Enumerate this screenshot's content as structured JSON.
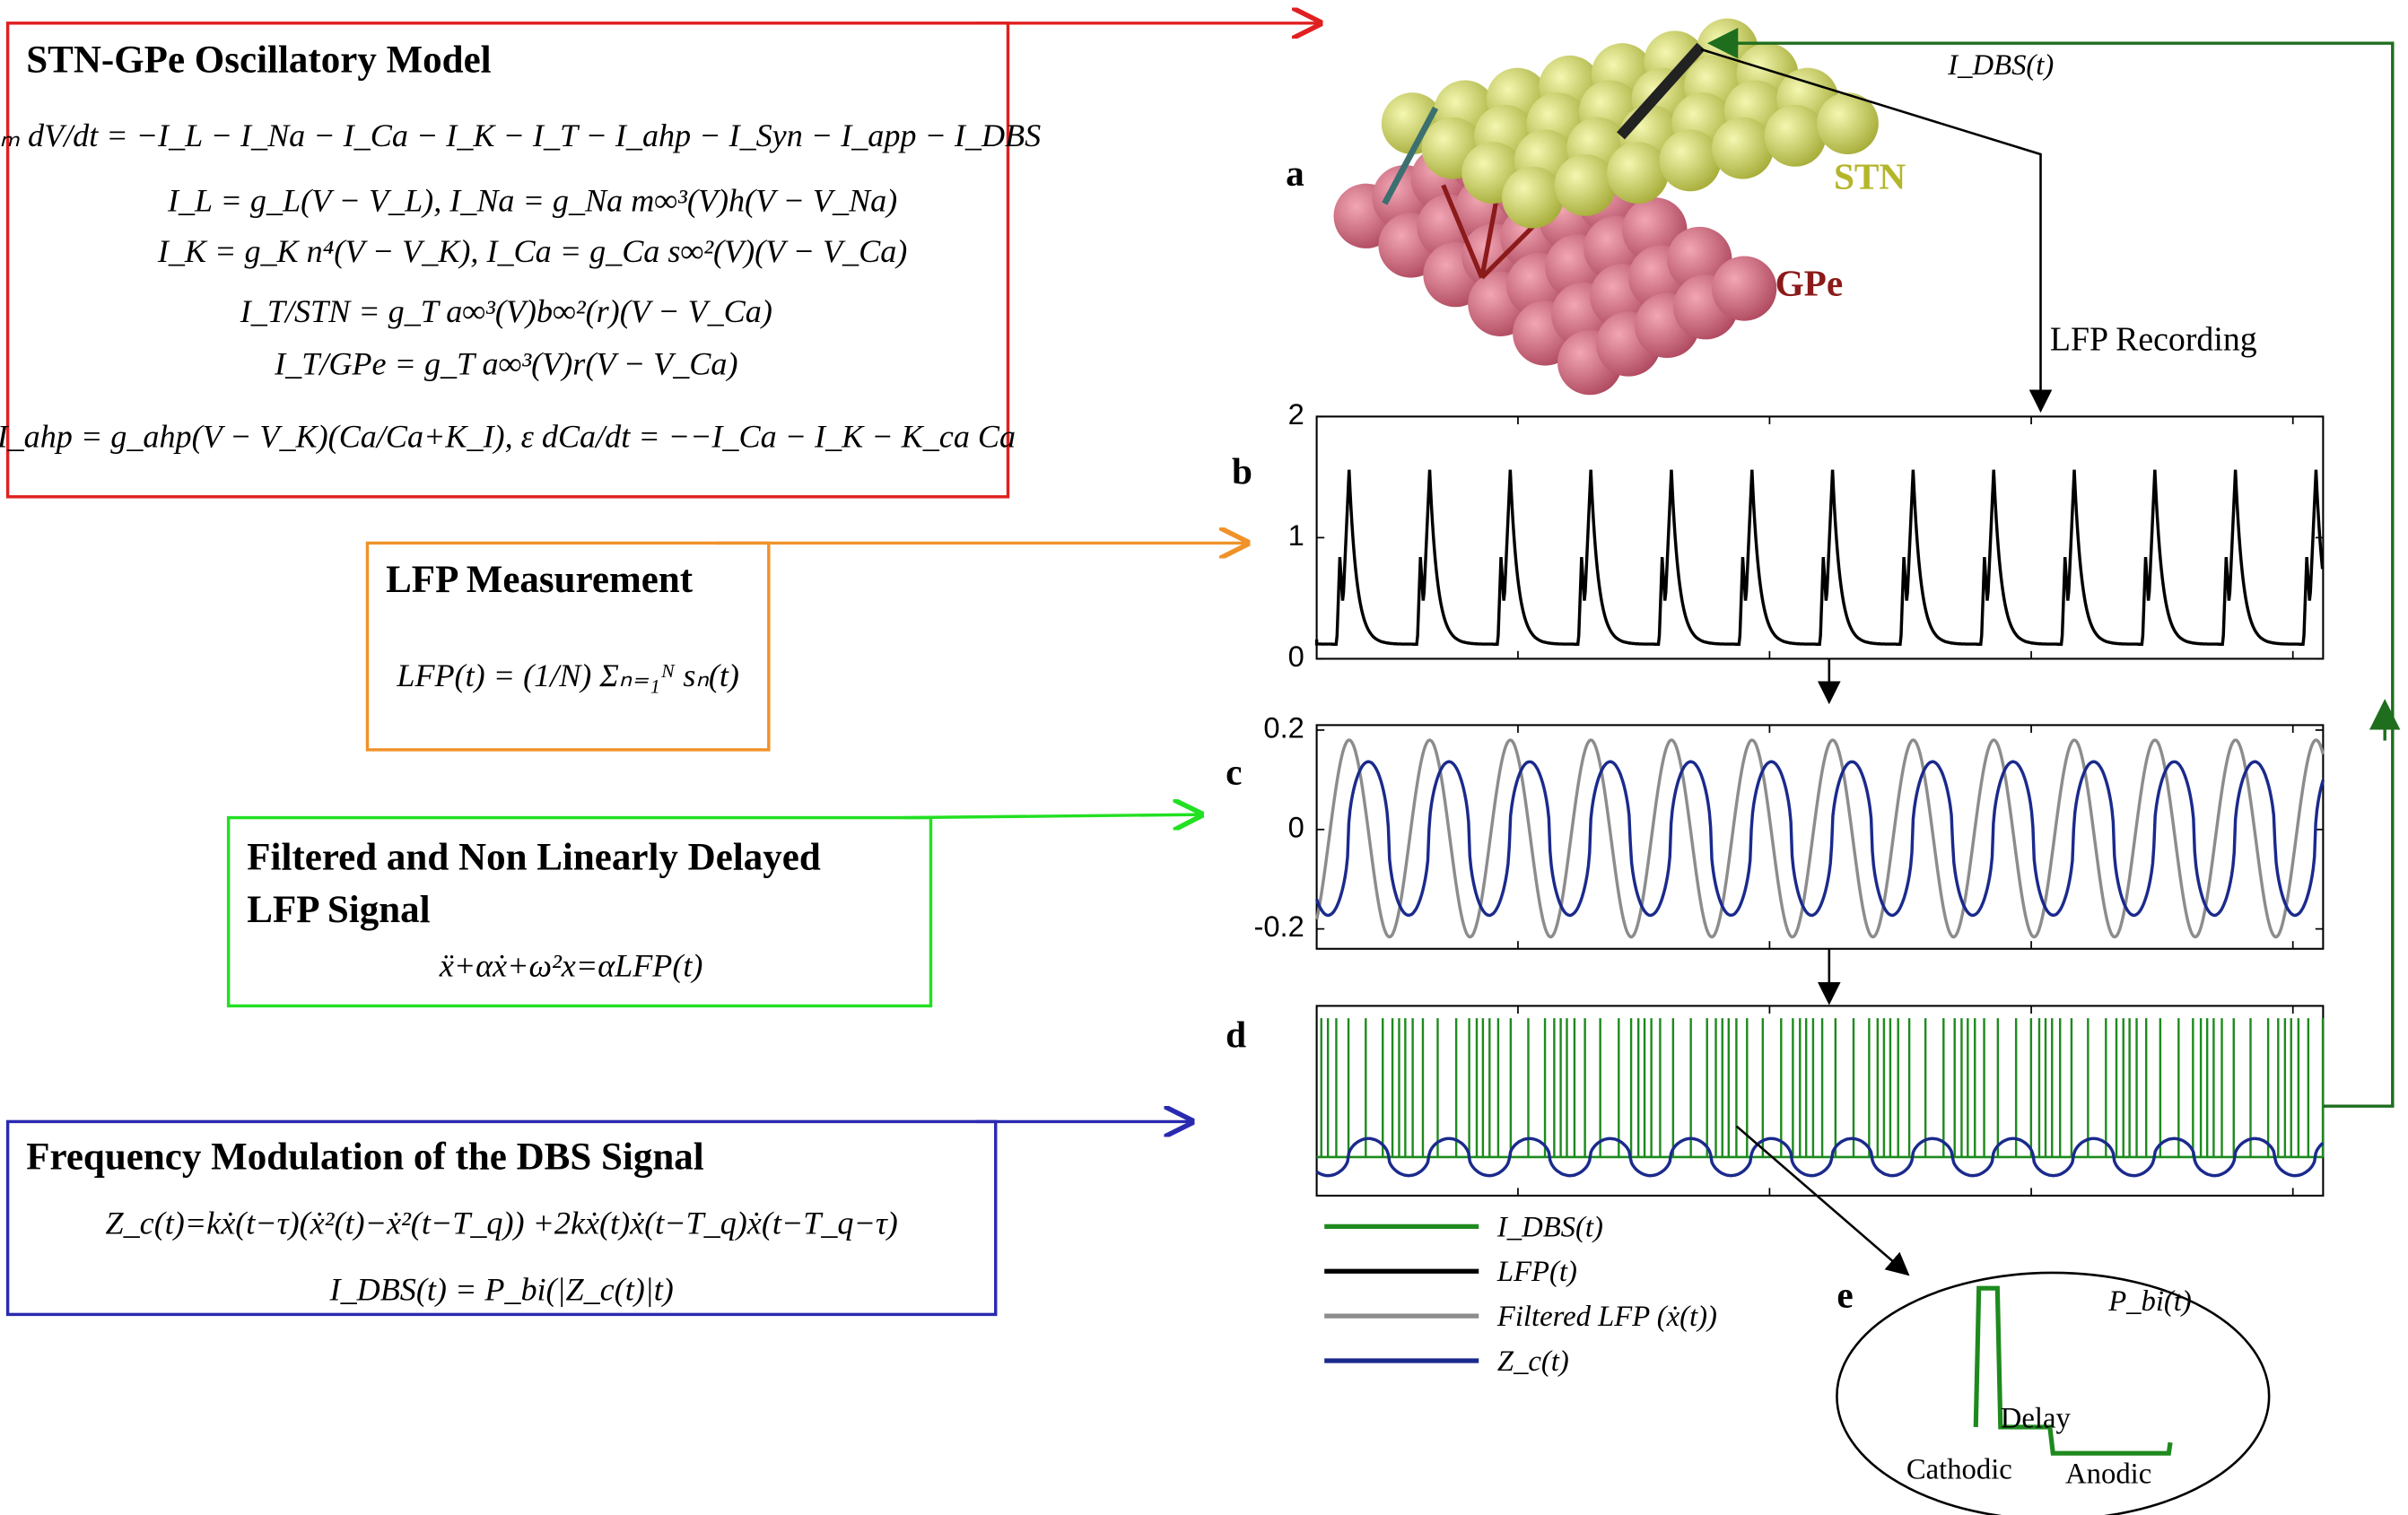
{
  "model": {
    "title": "STN-GPe Oscillatory Model",
    "equations": [
      "Cₘ dV/dt = −I_L − I_Na − I_Ca − I_K − I_T − I_ahp − I_Syn − I_app − I_DBS",
      "I_L = g_L(V − V_L),    I_Na = g_Na m∞³(V)h(V − V_Na)",
      "I_K = g_K n⁴(V − V_K),    I_Ca = g_Ca s∞²(V)(V − V_Ca)",
      "I_T/STN = g_T a∞³(V)b∞²(r)(V − V_Ca)",
      "I_T/GPe = g_T a∞³(V)r(V − V_Ca)",
      "I_ahp = g_ahp(V − V_K)(Ca/Ca+K_I),   ε dCa/dt = −−I_Ca − I_K − K_ca Ca"
    ]
  },
  "lfp": {
    "title": "LFP Measurement",
    "equation": "LFP(t) = (1/N) Σₙ₌₁ᴺ sₙ(t)"
  },
  "filtered": {
    "title": [
      "Filtered and Non Linearly Delayed",
      "LFP Signal"
    ],
    "equation": "ẍ+αẋ+ω²x=αLFP(t)"
  },
  "fm": {
    "title": "Frequency Modulation of the DBS Signal",
    "equations": [
      "Z_c(t)=kẋ(t−τ)(ẋ²(t)−ẋ²(t−T_q)) +2kẋ(t)ẋ(t−T_q)ẋ(t−T_q−τ)",
      "I_DBS(t) = P_bi(|Z_c(t)|t)"
    ]
  },
  "network": {
    "label": "a",
    "stn": "STN",
    "gpe": "GPe",
    "recording": "LFP Recording",
    "feedback": "I_DBS(t)"
  },
  "plots": {
    "b": {
      "label": "b",
      "ylim": [
        0,
        2
      ],
      "yticks": [
        0,
        1,
        2
      ]
    },
    "c": {
      "label": "c",
      "ylim": [
        -0.24,
        0.21
      ],
      "yticks": [
        -0.2,
        0,
        0.2
      ]
    },
    "d": {
      "label": "d"
    }
  },
  "legend": [
    {
      "name": "I_DBS(t)",
      "color": "#1e8a1e"
    },
    {
      "name": "LFP(t)",
      "color": "#000000"
    },
    {
      "name": "Filtered LFP (ẋ(t))",
      "color": "#8c8c8c"
    },
    {
      "name": "Z_c(t)",
      "color": "#1a2a8c"
    }
  ],
  "pulse": {
    "label": "e",
    "title": "P_bi(t)",
    "cathodic": "Cathodic",
    "delay": "Delay",
    "anodic": "Anodic"
  }
}
